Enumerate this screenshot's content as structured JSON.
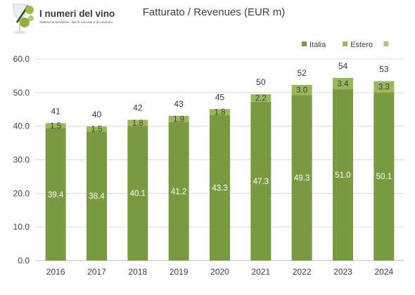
{
  "logo": {
    "title": "I numeri del vino",
    "subtitle": "Statistiche produttive, dati di mercato e di consumo"
  },
  "chart_data": {
    "type": "bar",
    "stacked": true,
    "title": "Fatturato / Revenues (EUR m)",
    "xlabel": "",
    "ylabel": "",
    "categories": [
      "2016",
      "2017",
      "2018",
      "2019",
      "2020",
      "2021",
      "2022",
      "2023",
      "2024"
    ],
    "series": [
      {
        "name": "Italia",
        "color": "#7a9a41",
        "values": [
          39.4,
          38.4,
          40.1,
          41.2,
          43.3,
          47.3,
          49.3,
          51.0,
          50.1
        ],
        "labels": [
          "39.4",
          "38.4",
          "40.1",
          "41.2",
          "43.3",
          "47.3",
          "49.3",
          "51.0",
          "50.1"
        ]
      },
      {
        "name": "Estero",
        "color": "#98b85a",
        "values": [
          1.5,
          1.5,
          1.8,
          1.9,
          1.8,
          2.2,
          3.0,
          3.4,
          3.3
        ],
        "labels": [
          "1.5",
          "1.5",
          "1.8",
          "1.9",
          "1.8",
          "2.2",
          "3.0",
          "3.4",
          "3.3"
        ]
      },
      {
        "name": "",
        "color": "#a9c77a",
        "values": [
          0,
          0,
          0,
          0,
          0,
          0,
          0,
          0,
          0
        ]
      }
    ],
    "totals": [
      "41",
      "40",
      "42",
      "43",
      "45",
      "50",
      "52",
      "54",
      "53"
    ],
    "ylim": [
      0,
      60
    ],
    "yticks": [
      "0.0",
      "10.0",
      "20.0",
      "30.0",
      "40.0",
      "50.0",
      "60.0"
    ],
    "grid": true,
    "legend": "top-right"
  }
}
